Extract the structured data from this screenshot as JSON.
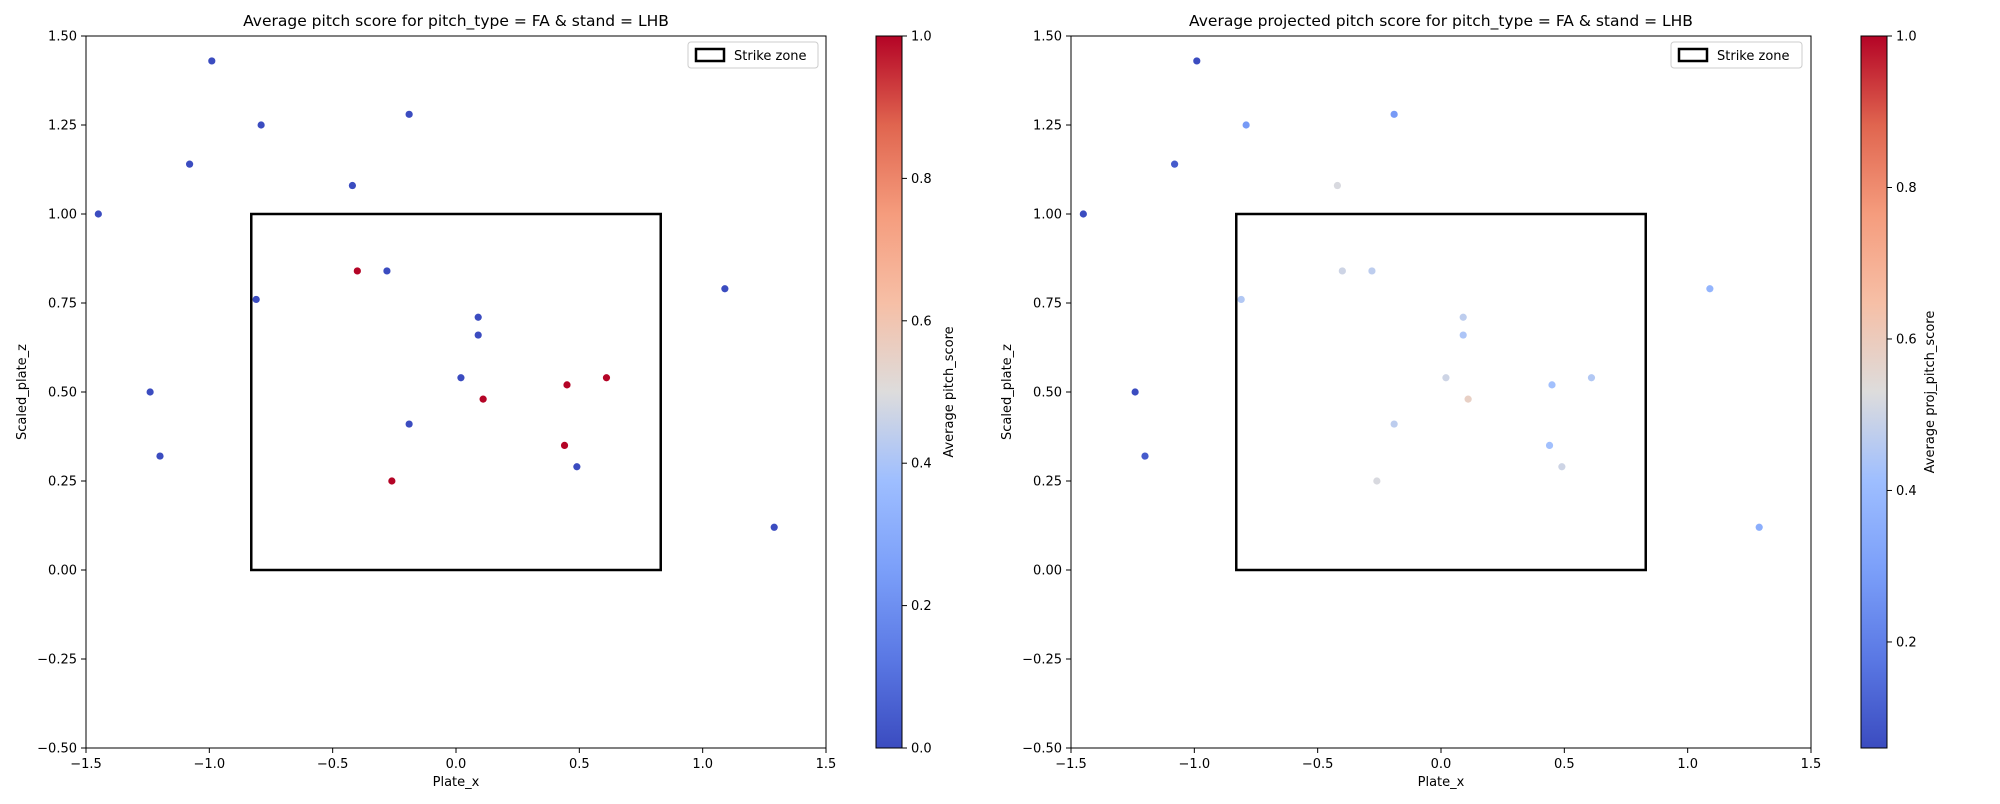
{
  "chart_data": [
    {
      "type": "scatter",
      "title": "Average pitch score for pitch_type = FA & stand = LHB",
      "xlabel": "Plate_x",
      "ylabel": "Scaled_plate_z",
      "xlim": [
        -1.5,
        1.5
      ],
      "ylim": [
        -0.5,
        1.5
      ],
      "xticks": [
        "−1.5",
        "−1.0",
        "−0.5",
        "0.0",
        "0.5",
        "1.0",
        "1.5"
      ],
      "yticks": [
        "−0.50",
        "−0.25",
        "0.00",
        "0.25",
        "0.50",
        "0.75",
        "1.00",
        "1.25",
        "1.50"
      ],
      "legend": {
        "position": "top-right",
        "label": "Strike zone"
      },
      "strike_zone": {
        "x": [
          -0.83,
          0.83
        ],
        "z": [
          0.0,
          1.0
        ]
      },
      "colorbar": {
        "label": "Average pitch_score",
        "range": [
          0.0,
          1.0
        ],
        "ticks": [
          "0.0",
          "0.2",
          "0.4",
          "0.6",
          "0.8",
          "1.0"
        ]
      },
      "points": [
        {
          "x": -1.45,
          "y": 1.0,
          "value": 0.0
        },
        {
          "x": -0.99,
          "y": 1.43,
          "value": 0.0
        },
        {
          "x": -1.08,
          "y": 1.14,
          "value": 0.0
        },
        {
          "x": -0.79,
          "y": 1.25,
          "value": 0.0
        },
        {
          "x": -0.19,
          "y": 1.28,
          "value": 0.0
        },
        {
          "x": -0.42,
          "y": 1.08,
          "value": 0.0
        },
        {
          "x": -0.81,
          "y": 0.76,
          "value": 0.0
        },
        {
          "x": -0.4,
          "y": 0.84,
          "value": 1.0
        },
        {
          "x": -0.28,
          "y": 0.84,
          "value": 0.0
        },
        {
          "x": 0.09,
          "y": 0.71,
          "value": 0.0
        },
        {
          "x": 0.09,
          "y": 0.66,
          "value": 0.0
        },
        {
          "x": 0.02,
          "y": 0.54,
          "value": 0.0
        },
        {
          "x": 0.11,
          "y": 0.48,
          "value": 1.0
        },
        {
          "x": 0.45,
          "y": 0.52,
          "value": 1.0
        },
        {
          "x": 0.61,
          "y": 0.54,
          "value": 1.0
        },
        {
          "x": -1.24,
          "y": 0.5,
          "value": 0.0
        },
        {
          "x": -1.2,
          "y": 0.32,
          "value": 0.0
        },
        {
          "x": -0.19,
          "y": 0.41,
          "value": 0.0
        },
        {
          "x": 0.44,
          "y": 0.35,
          "value": 1.0
        },
        {
          "x": 0.49,
          "y": 0.29,
          "value": 0.0
        },
        {
          "x": -0.26,
          "y": 0.25,
          "value": 1.0
        },
        {
          "x": 1.09,
          "y": 0.79,
          "value": 0.0
        },
        {
          "x": 1.29,
          "y": 0.12,
          "value": 0.0
        }
      ]
    },
    {
      "type": "scatter",
      "title": "Average projected pitch score for pitch_type = FA & stand = LHB",
      "xlabel": "Plate_x",
      "ylabel": "Scaled_plate_z",
      "xlim": [
        -1.5,
        1.5
      ],
      "ylim": [
        -0.5,
        1.5
      ],
      "xticks": [
        "−1.5",
        "−1.0",
        "−0.5",
        "0.0",
        "0.5",
        "1.0",
        "1.5"
      ],
      "yticks": [
        "−0.50",
        "−0.25",
        "0.00",
        "0.25",
        "0.50",
        "0.75",
        "1.00",
        "1.25",
        "1.50"
      ],
      "legend": {
        "position": "top-right",
        "label": "Strike zone"
      },
      "strike_zone": {
        "x": [
          -0.83,
          0.83
        ],
        "z": [
          0.0,
          1.0
        ]
      },
      "colorbar": {
        "label": "Average proj_pitch_score",
        "range": [
          0.06,
          1.0
        ],
        "ticks": [
          "0.2",
          "0.4",
          "0.6",
          "0.8",
          "1.0"
        ]
      },
      "points": [
        {
          "x": -1.45,
          "y": 1.0,
          "value": 0.06
        },
        {
          "x": -0.99,
          "y": 1.43,
          "value": 0.06
        },
        {
          "x": -1.08,
          "y": 1.14,
          "value": 0.1
        },
        {
          "x": -0.79,
          "y": 1.25,
          "value": 0.28
        },
        {
          "x": -0.19,
          "y": 1.28,
          "value": 0.28
        },
        {
          "x": -0.42,
          "y": 1.08,
          "value": 0.52
        },
        {
          "x": -0.81,
          "y": 0.76,
          "value": 0.45
        },
        {
          "x": -0.4,
          "y": 0.84,
          "value": 0.5
        },
        {
          "x": -0.28,
          "y": 0.84,
          "value": 0.47
        },
        {
          "x": 0.09,
          "y": 0.71,
          "value": 0.47
        },
        {
          "x": 0.09,
          "y": 0.66,
          "value": 0.44
        },
        {
          "x": 0.02,
          "y": 0.54,
          "value": 0.5
        },
        {
          "x": 0.11,
          "y": 0.48,
          "value": 0.58
        },
        {
          "x": 0.45,
          "y": 0.52,
          "value": 0.42
        },
        {
          "x": 0.61,
          "y": 0.54,
          "value": 0.45
        },
        {
          "x": -1.24,
          "y": 0.5,
          "value": 0.06
        },
        {
          "x": -1.2,
          "y": 0.32,
          "value": 0.1
        },
        {
          "x": -0.19,
          "y": 0.41,
          "value": 0.47
        },
        {
          "x": 0.44,
          "y": 0.35,
          "value": 0.42
        },
        {
          "x": 0.49,
          "y": 0.29,
          "value": 0.5
        },
        {
          "x": -0.26,
          "y": 0.25,
          "value": 0.52
        },
        {
          "x": 1.09,
          "y": 0.79,
          "value": 0.38
        },
        {
          "x": 1.29,
          "y": 0.12,
          "value": 0.35
        }
      ]
    }
  ]
}
